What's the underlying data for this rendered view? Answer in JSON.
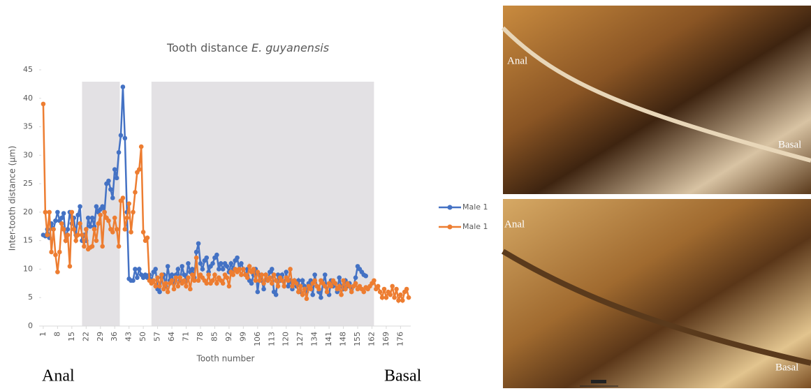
{
  "chart_data": {
    "type": "line",
    "title": "Tooth distance",
    "title_species": "E. guyanensis",
    "x_label": "Tooth number",
    "y_label": "Inter-tooth distance (µm)",
    "xlim": [
      0,
      181
    ],
    "ylim": [
      0,
      45
    ],
    "xticks": [
      1,
      8,
      15,
      22,
      29,
      36,
      43,
      50,
      57,
      64,
      71,
      78,
      85,
      92,
      99,
      106,
      113,
      120,
      127,
      134,
      141,
      148,
      155,
      162,
      169,
      176
    ],
    "yticks": [
      0,
      5,
      10,
      15,
      20,
      25,
      30,
      35,
      40,
      45
    ],
    "shaded_ranges": [
      [
        20,
        38.5
      ],
      [
        54,
        163
      ]
    ],
    "shade_color": "#e3e1e4",
    "legend": "right",
    "x": [
      1,
      2,
      3,
      4,
      5,
      6,
      7,
      8,
      9,
      10,
      11,
      12,
      13,
      14,
      15,
      16,
      17,
      18,
      19,
      20,
      21,
      22,
      23,
      24,
      25,
      26,
      27,
      28,
      29,
      30,
      31,
      32,
      33,
      34,
      35,
      36,
      37,
      38,
      39,
      40,
      41,
      42,
      43,
      44,
      45,
      46,
      47,
      48,
      49,
      50,
      51,
      52,
      53,
      54,
      55,
      56,
      57,
      58,
      59,
      60,
      61,
      62,
      63,
      64,
      65,
      66,
      67,
      68,
      69,
      70,
      71,
      72,
      73,
      74,
      75,
      76,
      77,
      78,
      79,
      80,
      81,
      82,
      83,
      84,
      85,
      86,
      87,
      88,
      89,
      90,
      91,
      92,
      93,
      94,
      95,
      96,
      97,
      98,
      99,
      100,
      101,
      102,
      103,
      104,
      105,
      106,
      107,
      108,
      109,
      110,
      111,
      112,
      113,
      114,
      115,
      116,
      117,
      118,
      119,
      120,
      121,
      122,
      123,
      124,
      125,
      126,
      127,
      128,
      129,
      130,
      131,
      132,
      133,
      134,
      135,
      136,
      137,
      138,
      139,
      140,
      141,
      142,
      143,
      144,
      145,
      146,
      147,
      148,
      149,
      150,
      151,
      152,
      153,
      154,
      155,
      156,
      157,
      158,
      159,
      160,
      161,
      162,
      163,
      164,
      165,
      166,
      167,
      168,
      169,
      170,
      171,
      172,
      173,
      174,
      175,
      176,
      177,
      178,
      179,
      180
    ],
    "series": [
      {
        "name": "Male 1",
        "color": "#4472c4",
        "values": [
          16,
          15.8,
          17,
          15.5,
          18,
          17,
          18.5,
          20,
          18.5,
          19,
          19.8,
          15,
          17,
          20,
          18,
          19,
          16,
          19.5,
          21,
          15,
          16,
          15,
          19,
          17.5,
          19,
          17.5,
          21,
          20,
          20.5,
          21,
          20,
          25,
          25.5,
          24,
          22.5,
          27.5,
          26,
          30.5,
          33.5,
          42,
          33,
          20,
          8.3,
          8,
          8,
          10,
          8.5,
          10,
          9,
          8.5,
          9,
          8.5,
          9,
          8,
          9.5,
          10,
          6.5,
          6,
          8.5,
          9,
          7,
          10.5,
          8,
          9,
          7.5,
          9,
          10,
          8,
          10.5,
          9,
          8,
          11,
          9.5,
          10,
          8.5,
          13,
          14.5,
          11,
          10,
          11.5,
          12,
          9.5,
          10.5,
          11,
          12,
          12.5,
          10,
          11,
          10,
          11,
          10.5,
          9.5,
          11,
          10,
          11.5,
          12,
          10,
          11,
          10,
          9,
          10,
          8,
          7.5,
          9,
          10,
          6,
          9,
          8,
          6.5,
          9,
          8,
          9.5,
          10,
          6,
          5.5,
          9,
          8,
          9,
          7,
          9.5,
          7,
          8,
          6.5,
          8,
          7,
          8,
          6,
          8,
          7,
          6,
          7.5,
          8,
          5.5,
          9,
          7,
          6,
          5,
          7.5,
          9,
          6,
          5.5,
          8,
          7,
          7.5,
          6,
          8.5,
          7,
          6.5,
          8,
          7,
          7.5,
          6.5,
          7,
          8.5,
          10.5,
          10,
          9.5,
          9,
          8.8,
          null,
          null,
          null,
          null,
          null,
          null,
          null,
          null,
          null,
          null,
          null,
          null,
          null,
          null,
          null,
          null,
          null,
          null,
          null,
          null,
          null
        ]
      },
      {
        "name": "Male 1",
        "color": "#ed7d31",
        "values": [
          39,
          20,
          16,
          20,
          13,
          17,
          12.5,
          9.5,
          13,
          18,
          17,
          15,
          16,
          10.5,
          20,
          17,
          15,
          16,
          18,
          16,
          14,
          17,
          13.5,
          13.8,
          14,
          17,
          15,
          18,
          19.5,
          14,
          20,
          19,
          18.5,
          17,
          16.5,
          19,
          17,
          14,
          22,
          22.5,
          17,
          19,
          21.5,
          16.5,
          20,
          23.5,
          27,
          27.5,
          31.5,
          16.5,
          15,
          15.5,
          8,
          7.5,
          8,
          7,
          8.5,
          7,
          9,
          6.5,
          7.5,
          6,
          7.5,
          8,
          6.5,
          8.5,
          7,
          8.5,
          7.5,
          8,
          7,
          8.5,
          6.5,
          9,
          8,
          12,
          8,
          9,
          8.5,
          8,
          7.5,
          9,
          7.5,
          8,
          9,
          7.5,
          8.5,
          8,
          7.5,
          9,
          8.5,
          7,
          9.5,
          9,
          10,
          9.5,
          10,
          9,
          10,
          9,
          8.5,
          10.5,
          9.5,
          10,
          8,
          9.5,
          8,
          9,
          7.5,
          9,
          8,
          8.5,
          7.5,
          9,
          8,
          7,
          8.5,
          8,
          7,
          8.5,
          8,
          10,
          7,
          8,
          7.5,
          6,
          7,
          5.5,
          6.5,
          4.8,
          7,
          6.5,
          7.5,
          8,
          7,
          6.5,
          8,
          7.5,
          7,
          6,
          7.5,
          7,
          8,
          7.5,
          6.5,
          7,
          5.5,
          8,
          6.5,
          7.5,
          7,
          6,
          7,
          7.5,
          6.5,
          7,
          6.5,
          6,
          6.8,
          6.5,
          7,
          7.5,
          8,
          6.5,
          7,
          6,
          5,
          6.5,
          5,
          6,
          5.5,
          7,
          5,
          6.5,
          4.5,
          5.5,
          4.5,
          6,
          6.5,
          5
        ]
      }
    ],
    "footer_left": "Anal",
    "footer_right": "Basal"
  },
  "photos": [
    {
      "left_label": "Anal",
      "right_label": "Basal"
    },
    {
      "left_label": "Anal",
      "right_label": "Basal"
    }
  ]
}
